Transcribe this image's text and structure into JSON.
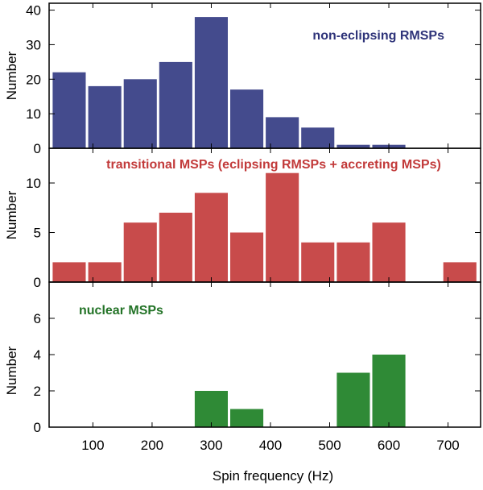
{
  "figure": {
    "xlabel": "Spin frequency (Hz)",
    "x_ticks": [
      100,
      200,
      300,
      400,
      500,
      600,
      700
    ]
  },
  "chart_data": [
    {
      "type": "bar",
      "title": "non-eclipsing RMSPs",
      "ylabel": "Number",
      "xlim": [
        26,
        755
      ],
      "ylim": [
        0,
        42
      ],
      "y_ticks": [
        0,
        10,
        20,
        30,
        40
      ],
      "color": "#444b8d",
      "bin_width": 60,
      "x": [
        60,
        120,
        180,
        240,
        300,
        360,
        420,
        480,
        540,
        600
      ],
      "values": [
        22,
        18,
        20,
        25,
        38,
        17,
        9,
        6,
        1,
        1
      ]
    },
    {
      "type": "bar",
      "title": "transitional MSPs (eclipsing RMSPs + accreting MSPs)",
      "ylabel": "Number",
      "xlim": [
        26,
        755
      ],
      "ylim": [
        0,
        13.5
      ],
      "y_ticks": [
        0,
        5,
        10
      ],
      "color": "#c84b4b",
      "bin_width": 60,
      "x": [
        60,
        120,
        180,
        240,
        300,
        360,
        420,
        480,
        540,
        600,
        720
      ],
      "values": [
        2,
        2,
        6,
        7,
        9,
        5,
        11,
        4,
        4,
        6,
        2
      ]
    },
    {
      "type": "bar",
      "title": "nuclear MSPs",
      "ylabel": "Number",
      "xlim": [
        26,
        755
      ],
      "ylim": [
        0,
        8
      ],
      "y_ticks": [
        0,
        2,
        4,
        6
      ],
      "color": "#2f8a36",
      "bin_width": 60,
      "x": [
        300,
        360,
        540,
        600
      ],
      "values": [
        2,
        1,
        3,
        4
      ]
    }
  ]
}
